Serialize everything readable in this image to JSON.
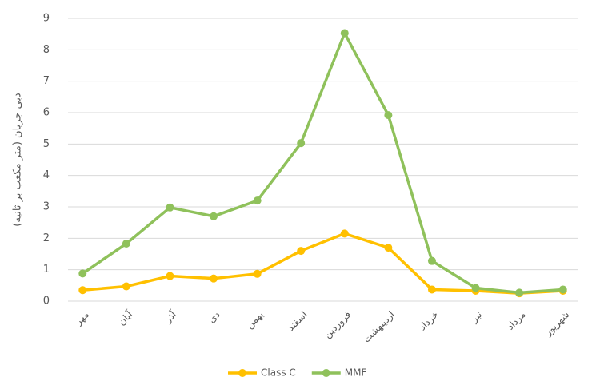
{
  "chart_data": {
    "type": "line",
    "y_label": "دبی جریان (متر مکعب بر ثانیه)",
    "categories": [
      "مهر",
      "آبان",
      "آذر",
      "دی",
      "بهمن",
      "اسفند",
      "فروردین",
      "اردیبهشت",
      "خرداد",
      "تیر",
      "مرداد",
      "شهریور"
    ],
    "series": [
      {
        "name": "Class C",
        "color": "#ffc000",
        "values": [
          0.35,
          0.47,
          0.8,
          0.72,
          0.87,
          1.6,
          2.15,
          1.7,
          0.37,
          0.33,
          0.25,
          0.33
        ]
      },
      {
        "name": "MMF",
        "color": "#8fc15b",
        "values": [
          0.88,
          1.83,
          2.98,
          2.7,
          3.2,
          5.03,
          8.53,
          5.92,
          1.28,
          0.42,
          0.27,
          0.37
        ]
      }
    ],
    "ylim": [
      0,
      9
    ],
    "yticks": [
      0,
      1,
      2,
      3,
      4,
      5,
      6,
      7,
      8,
      9
    ],
    "grid": true,
    "legend": "bottom"
  }
}
